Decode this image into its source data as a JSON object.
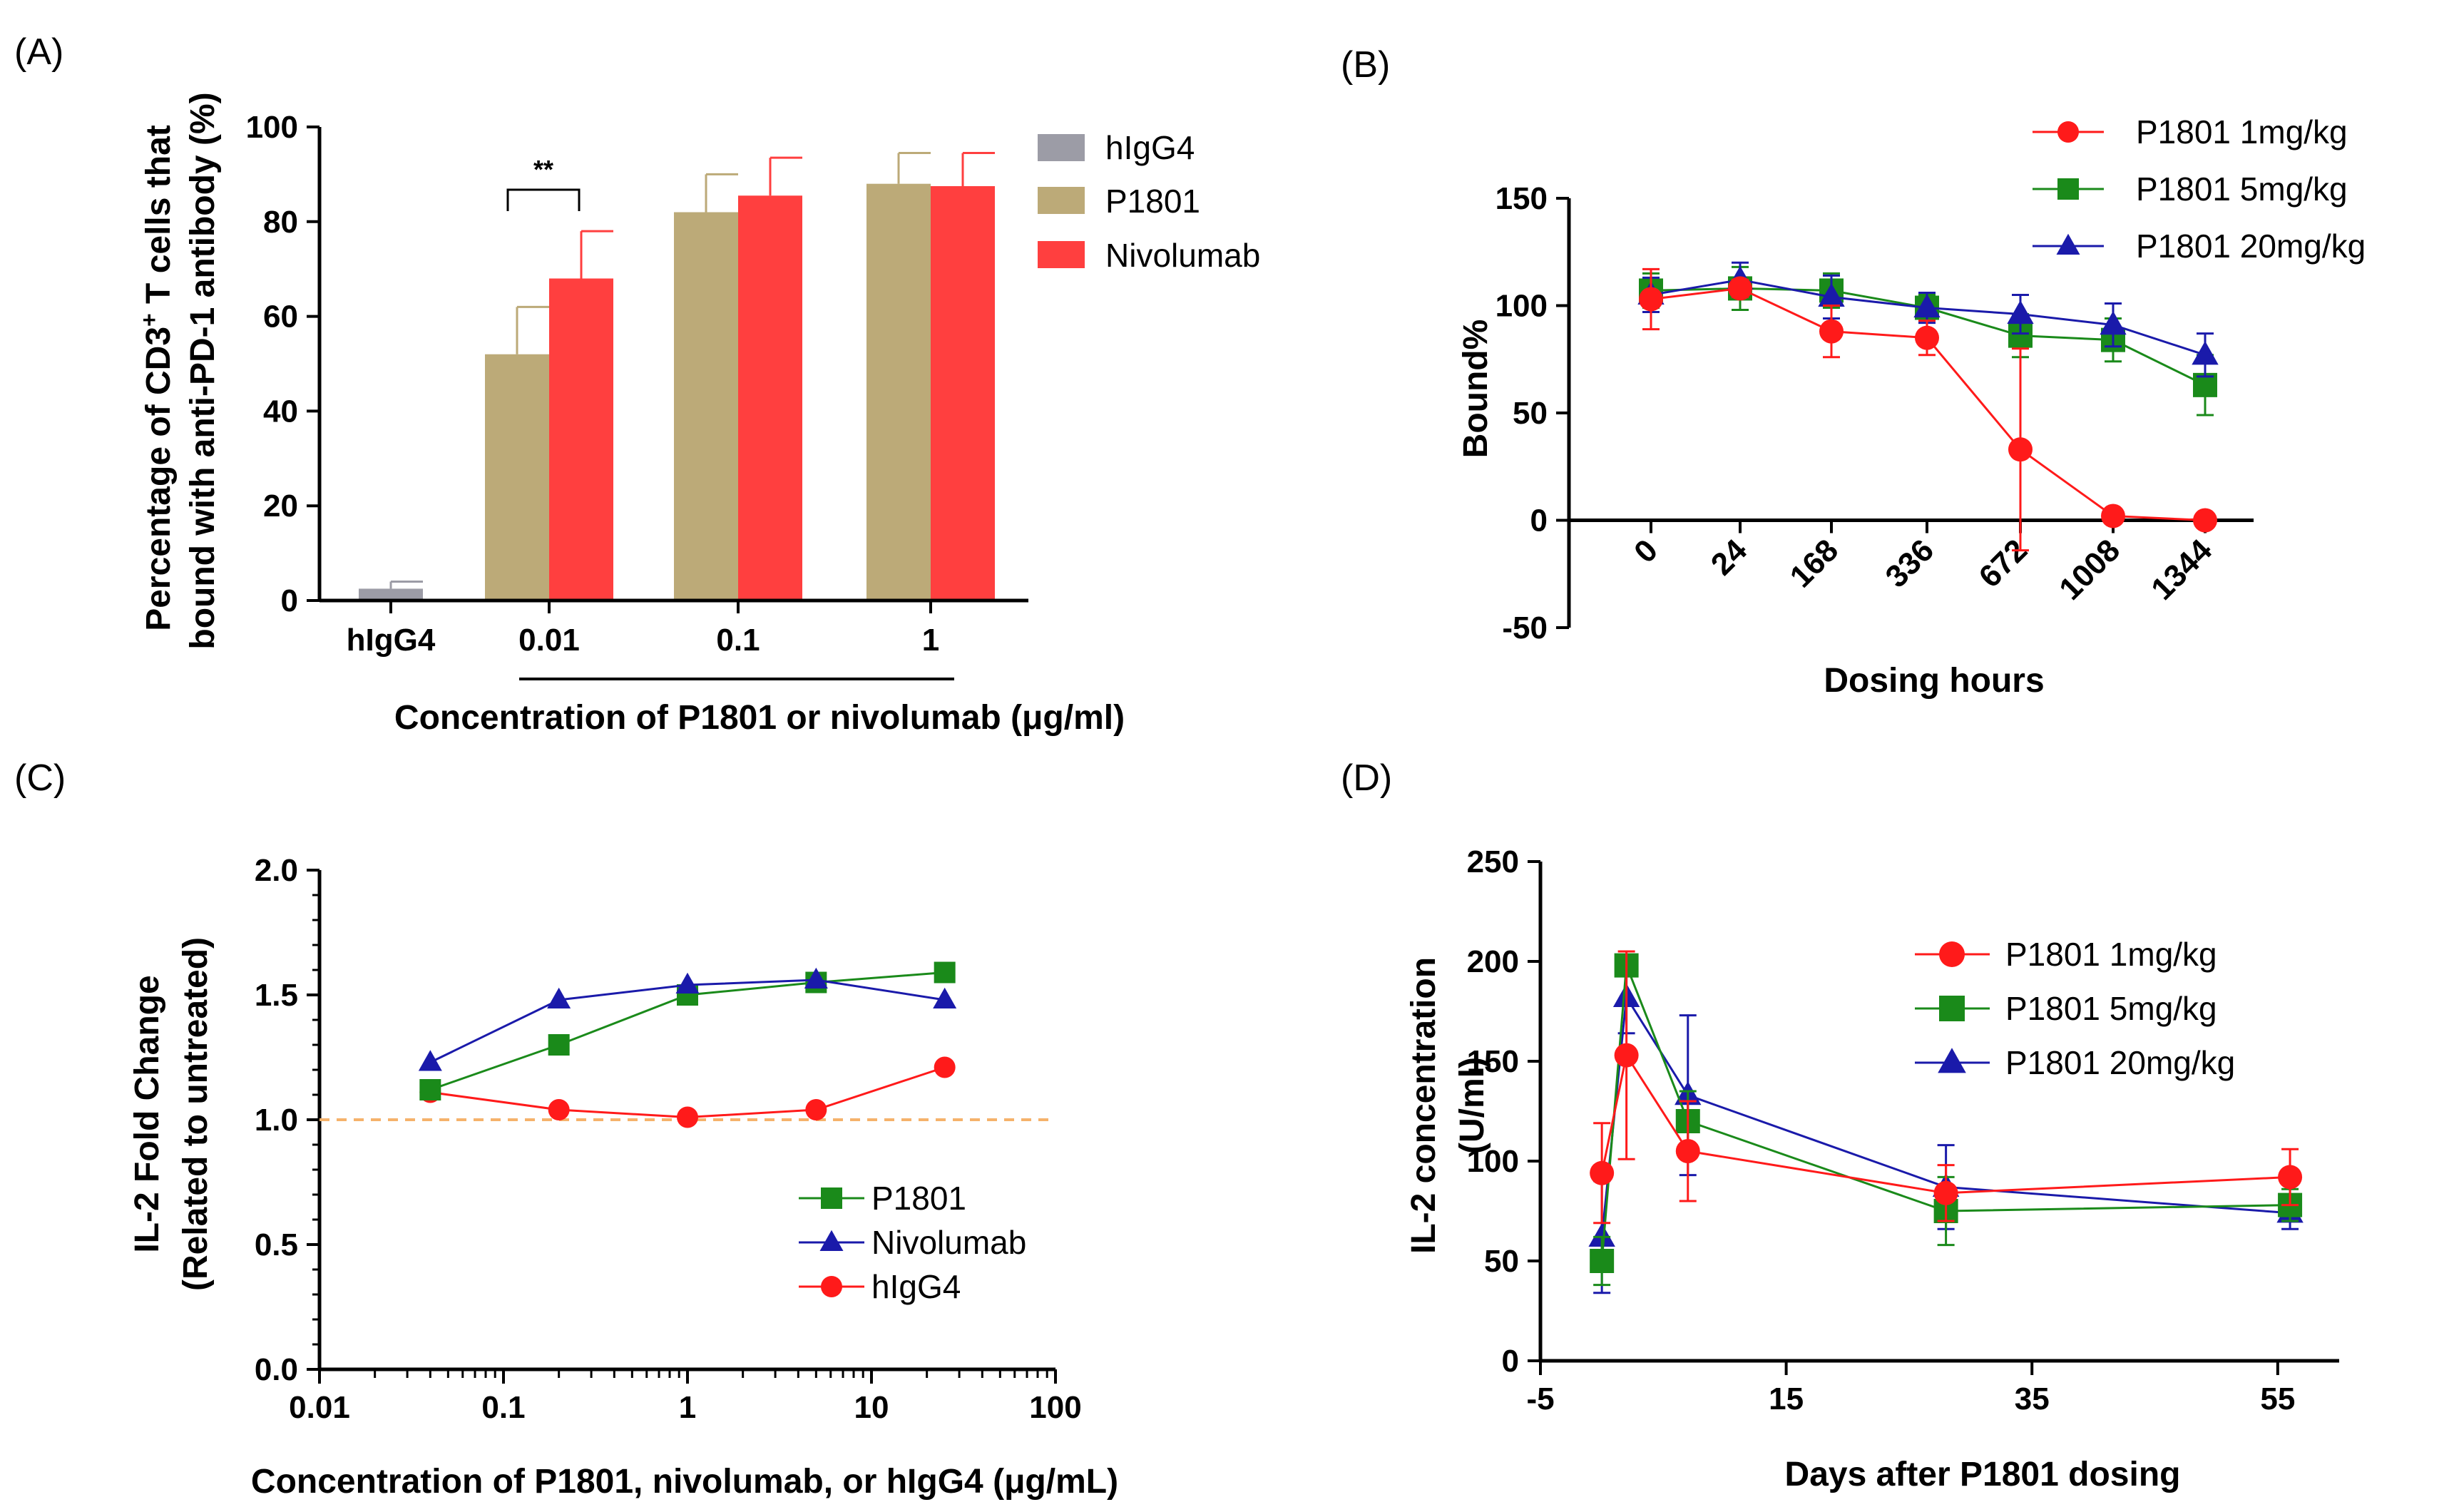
{
  "colors": {
    "hIgG4_bar": "#9c9ca6",
    "P1801_bar": "#bcaa78",
    "Nivolumab_bar": "#ff3f3f",
    "red": "#ff1a1a",
    "green": "#1a8a1a",
    "blue": "#1a1aaa",
    "refline": "#f5b26b"
  },
  "chart_data": [
    {
      "panel": "(A)",
      "type": "bar",
      "ylabel_line1": "Percentage of CD3",
      "ylabel_sup": "+",
      "ylabel_line1_rest": " T cells that",
      "ylabel_line2": "bound with anti-PD-1 antibody (%)",
      "xlabel": "Concentration of P1801 or nivolumab (μg/ml)",
      "ylim": [
        0,
        100
      ],
      "yticks": [
        "0",
        "20",
        "40",
        "60",
        "80",
        "100"
      ],
      "categories": [
        "hIgG4",
        "0.01",
        "0.1",
        "1"
      ],
      "series": [
        {
          "name": "hIgG4",
          "values": [
            2.5,
            null,
            null,
            null
          ],
          "errors": [
            1.5,
            null,
            null,
            null
          ]
        },
        {
          "name": "P1801",
          "values": [
            null,
            52,
            82,
            88
          ],
          "errors": [
            null,
            10,
            8,
            6.5
          ]
        },
        {
          "name": "Nivolumab",
          "values": [
            null,
            68,
            85.5,
            87.5
          ],
          "errors": [
            null,
            10,
            8,
            7
          ]
        }
      ],
      "annotation": "**"
    },
    {
      "panel": "(B)",
      "type": "line",
      "ylabel": "Bound%",
      "xlabel": "Dosing hours",
      "ylim": [
        -50,
        150
      ],
      "yticks": [
        "-50",
        "0",
        "50",
        "100",
        "150"
      ],
      "categories": [
        "0",
        "24",
        "168",
        "336",
        "672",
        "1008",
        "1344"
      ],
      "series": [
        {
          "name": "P1801 1mg/kg",
          "marker": "circle",
          "values": [
            103,
            108,
            88,
            85,
            33,
            2,
            0
          ],
          "errors": [
            14,
            4,
            12,
            8,
            47,
            3,
            2
          ]
        },
        {
          "name": "P1801 5mg/kg",
          "marker": "square",
          "values": [
            107,
            108,
            107,
            99,
            86,
            84,
            63
          ],
          "errors": [
            8,
            10,
            8,
            6,
            10,
            10,
            14
          ]
        },
        {
          "name": "P1801 20mg/kg",
          "marker": "triangle",
          "values": [
            105,
            112,
            104,
            99,
            96,
            91,
            77
          ],
          "errors": [
            8,
            8,
            10,
            7,
            9,
            10,
            10
          ]
        }
      ]
    },
    {
      "panel": "(C)",
      "type": "line",
      "ylabel_line1": "IL-2 Fold Change",
      "ylabel_line2": "(Related to untreated)",
      "xlabel": "Concentration of P1801, nivolumab, or hIgG4 (μg/mL)",
      "xscale": "log",
      "xlim": [
        0.01,
        100
      ],
      "xticks": [
        "0.01",
        "0.1",
        "1",
        "10",
        "100"
      ],
      "ylim": [
        0.0,
        2.0
      ],
      "yticks": [
        "0.0",
        "0.5",
        "1.0",
        "1.5",
        "2.0"
      ],
      "reference_line_y": 1.0,
      "x": [
        0.04,
        0.2,
        1,
        5,
        25
      ],
      "series": [
        {
          "name": "P1801",
          "marker": "square",
          "values": [
            1.12,
            1.3,
            1.5,
            1.55,
            1.59
          ]
        },
        {
          "name": "Nivolumab",
          "marker": "triangle",
          "values": [
            1.23,
            1.48,
            1.54,
            1.56,
            1.48
          ]
        },
        {
          "name": "hIgG4",
          "marker": "circle",
          "values": [
            1.11,
            1.04,
            1.01,
            1.04,
            1.21
          ]
        }
      ]
    },
    {
      "panel": "(D)",
      "type": "line",
      "ylabel_line1": "IL-2 concentration",
      "ylabel_line2": "(U/ml)",
      "xlabel": "Days after P1801 dosing",
      "xlim": [
        -5,
        60
      ],
      "xticks": [
        "-5",
        "15",
        "35",
        "55"
      ],
      "ylim": [
        0,
        250
      ],
      "yticks": [
        "0",
        "50",
        "100",
        "150",
        "200",
        "250"
      ],
      "x": [
        0,
        2,
        7,
        28,
        56
      ],
      "series": [
        {
          "name": "P1801 1mg/kg",
          "marker": "circle",
          "values": [
            94,
            153,
            105,
            84,
            92
          ],
          "errors": [
            25,
            52,
            25,
            14,
            14
          ]
        },
        {
          "name": "P1801 5mg/kg",
          "marker": "square",
          "values": [
            50,
            198,
            120,
            75,
            78
          ],
          "errors": [
            12,
            5,
            15,
            17,
            8
          ]
        },
        {
          "name": "P1801 20mg/kg",
          "marker": "triangle",
          "values": [
            62,
            182,
            133,
            87,
            74
          ],
          "errors": [
            28,
            18,
            40,
            21,
            8
          ]
        }
      ]
    }
  ]
}
